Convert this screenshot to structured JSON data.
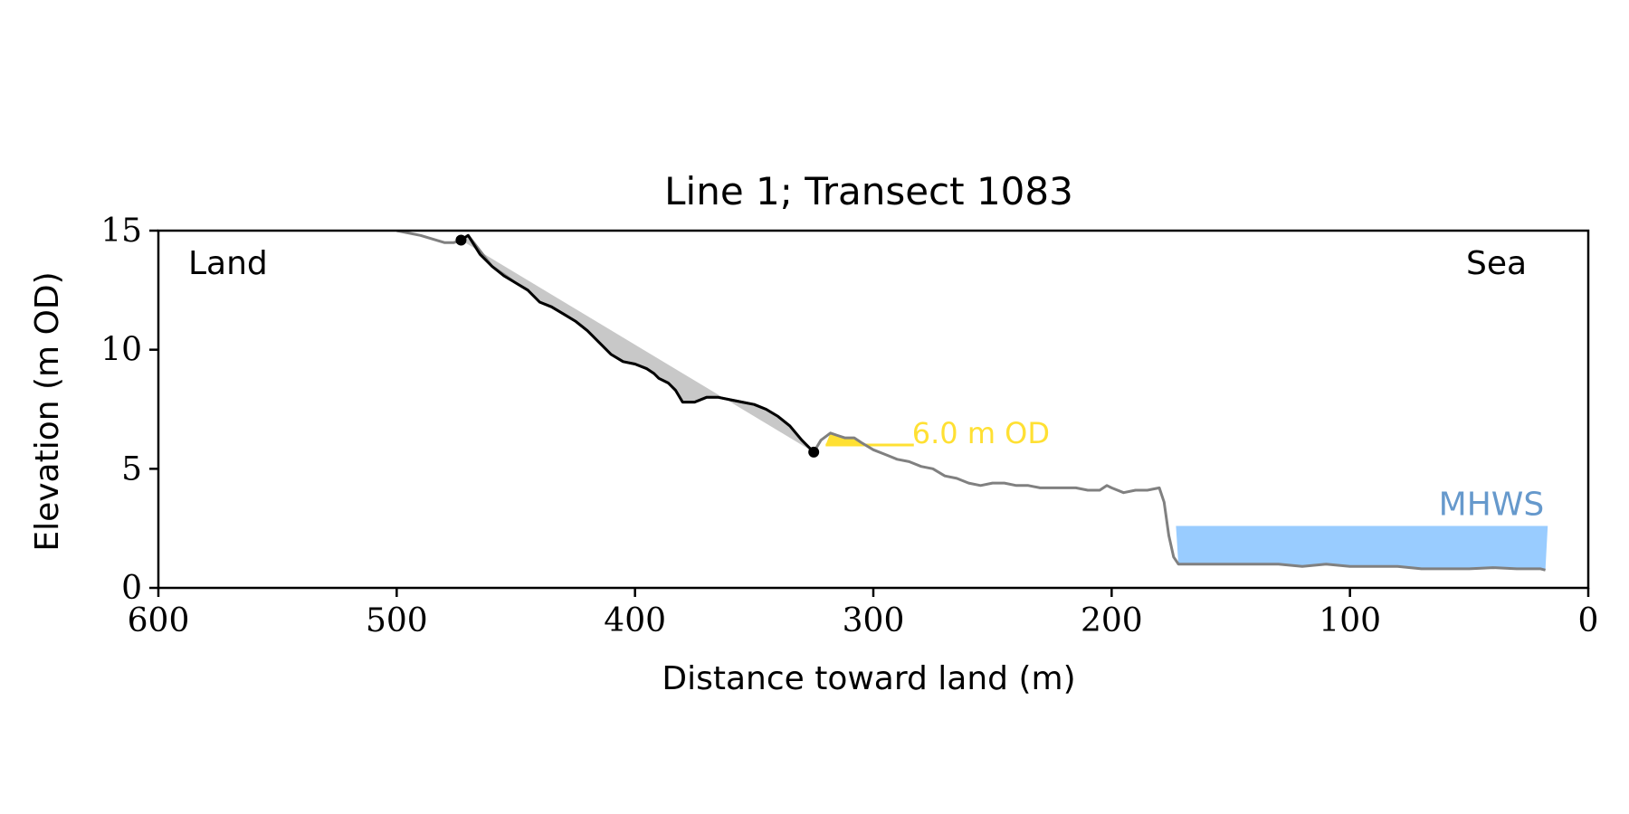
{
  "chart_data": {
    "type": "line",
    "title": "Line 1; Transect 1083",
    "xlabel": "Distance toward land (m)",
    "ylabel": "Elevation (m OD)",
    "xlim": [
      600,
      0
    ],
    "ylim": [
      0,
      15
    ],
    "x_axis_inverted": true,
    "xticks": [
      600,
      500,
      400,
      300,
      200,
      100,
      0
    ],
    "yticks": [
      0,
      5,
      10,
      15
    ],
    "grid": false,
    "corner_labels": {
      "left": "Land",
      "right": "Sea"
    },
    "colors": {
      "profile": "#808080",
      "cliff": "#000000",
      "chord_fill": "#c8c8c8",
      "level_marker": "#ffe033",
      "mhws": "#99ccff",
      "mhws_label": "#6699cc"
    },
    "series": [
      {
        "role": "profile",
        "x": [
          500,
          490,
          480,
          476,
          473,
          470,
          460,
          450,
          445,
          440,
          435,
          430,
          425,
          420,
          415,
          410,
          405,
          400,
          395,
          392,
          390,
          386,
          383,
          380,
          375,
          370,
          365,
          360,
          355,
          350,
          345,
          340,
          335,
          330,
          325,
          322,
          318,
          315,
          312,
          308,
          305,
          300,
          295,
          290,
          285,
          280,
          275,
          270,
          265,
          260,
          255,
          250,
          245,
          240,
          235,
          230,
          225,
          220,
          215,
          210,
          205,
          202,
          200,
          195,
          190,
          185,
          180,
          178,
          176,
          174,
          172,
          170,
          165,
          160,
          155,
          150,
          140,
          130,
          120,
          110,
          100,
          90,
          80,
          70,
          60,
          50,
          40,
          30,
          25,
          20,
          18
        ],
        "y": [
          15,
          14.8,
          14.5,
          14.5,
          14.6,
          14.8,
          13.5,
          12.8,
          12.5,
          12.0,
          11.8,
          11.5,
          11.2,
          10.8,
          10.3,
          9.8,
          9.5,
          9.4,
          9.2,
          9.0,
          8.8,
          8.6,
          8.3,
          7.8,
          7.8,
          8.0,
          8.0,
          7.9,
          7.8,
          7.7,
          7.5,
          7.2,
          6.8,
          6.2,
          5.7,
          6.2,
          6.5,
          6.4,
          6.3,
          6.3,
          6.1,
          5.8,
          5.6,
          5.4,
          5.3,
          5.1,
          5.0,
          4.7,
          4.6,
          4.4,
          4.3,
          4.4,
          4.4,
          4.3,
          4.3,
          4.2,
          4.2,
          4.2,
          4.2,
          4.1,
          4.1,
          4.3,
          4.2,
          4.0,
          4.1,
          4.1,
          4.2,
          3.6,
          2.2,
          1.3,
          1.0,
          1.0,
          1.0,
          1.0,
          1.0,
          1.0,
          1.0,
          1.0,
          0.9,
          1.0,
          0.9,
          0.9,
          0.9,
          0.8,
          0.8,
          0.8,
          0.85,
          0.8,
          0.8,
          0.8,
          0.75
        ]
      },
      {
        "role": "cliff",
        "x": [
          473,
          470,
          465,
          460,
          455,
          450,
          445,
          440,
          435,
          430,
          425,
          420,
          415,
          410,
          405,
          400,
          395,
          392,
          390,
          386,
          383,
          380,
          375,
          370,
          365,
          360,
          355,
          350,
          345,
          340,
          335,
          330,
          325
        ],
        "y": [
          14.6,
          14.8,
          14.0,
          13.5,
          13.1,
          12.8,
          12.5,
          12.0,
          11.8,
          11.5,
          11.2,
          10.8,
          10.3,
          9.8,
          9.5,
          9.4,
          9.2,
          9.0,
          8.8,
          8.6,
          8.3,
          7.8,
          7.8,
          8.0,
          8.0,
          7.9,
          7.8,
          7.7,
          7.5,
          7.2,
          6.8,
          6.2,
          5.7
        ]
      }
    ],
    "cliff_top": {
      "x": 473,
      "y": 14.6
    },
    "cliff_toe": {
      "x": 325,
      "y": 5.7
    },
    "level_marker": {
      "label": "6.0 m OD",
      "elevation": 6.0,
      "x_start": 320,
      "x_end": 283
    },
    "mhws": {
      "label": "MHWS",
      "elevation": 2.6,
      "x_start": 173,
      "x_end": 17
    }
  }
}
